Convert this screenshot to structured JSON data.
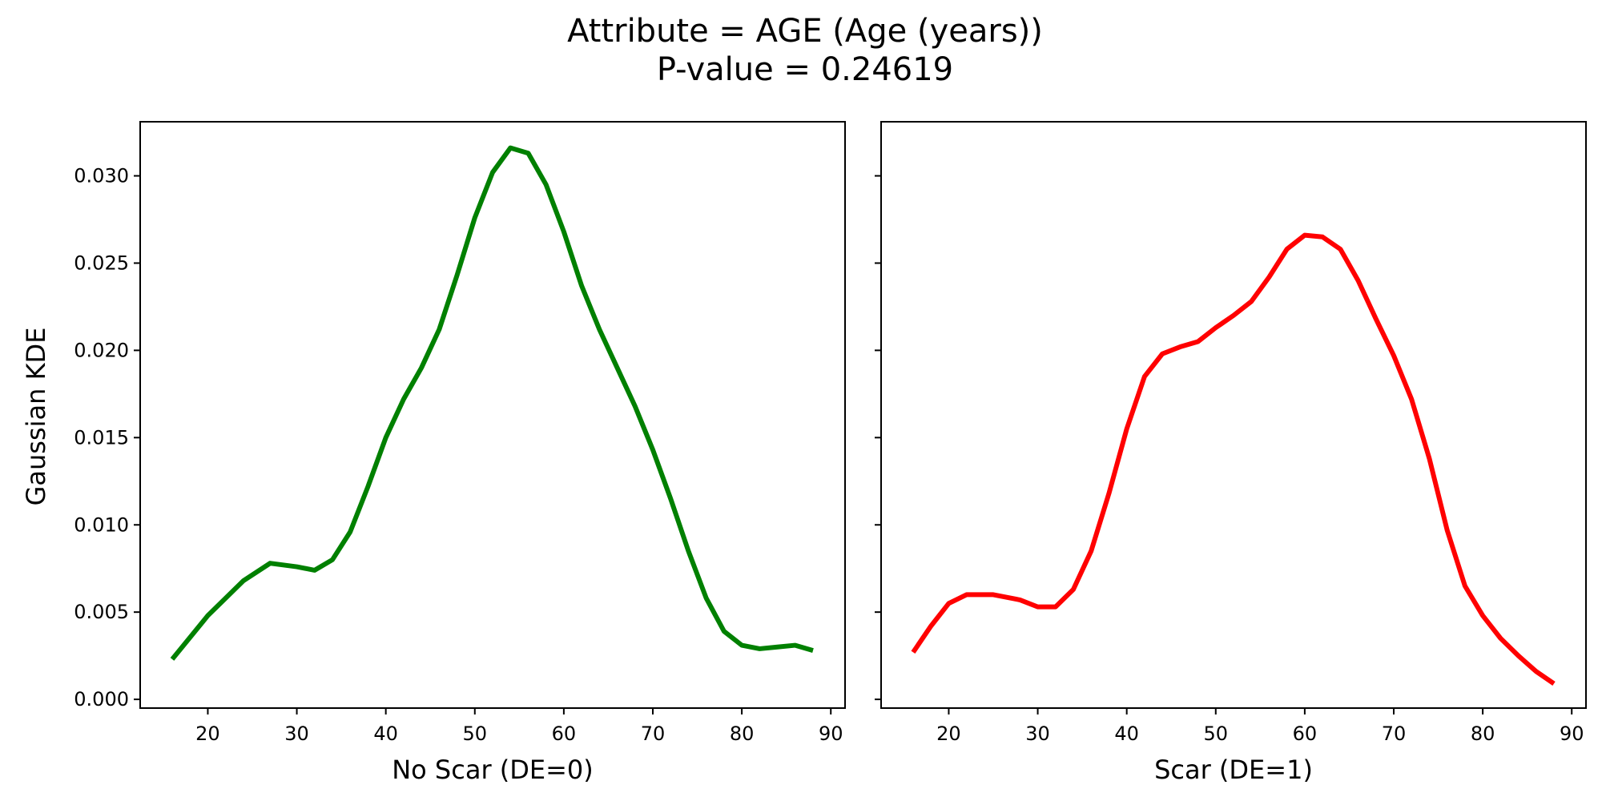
{
  "figure": {
    "title_line1": "Attribute = AGE (Age (years))",
    "title_line2": "P-value = 0.24619",
    "ylabel": "Gaussian KDE"
  },
  "chart_data": [
    {
      "type": "line",
      "title": "",
      "xlabel": "No Scar (DE=0)",
      "ylabel": "Gaussian KDE",
      "color": "#008000",
      "xlim": [
        12.4,
        91.6
      ],
      "ylim": [
        -0.0005,
        0.0331
      ],
      "xticks": [
        20,
        30,
        40,
        50,
        60,
        70,
        80,
        90
      ],
      "yticks": [
        0.0,
        0.005,
        0.01,
        0.015,
        0.02,
        0.025,
        0.03
      ],
      "yticklabels": [
        "0.000",
        "0.005",
        "0.010",
        "0.015",
        "0.020",
        "0.025",
        "0.030"
      ],
      "series": [
        {
          "name": "No Scar (DE=0)",
          "x": [
            16,
            20,
            24,
            27,
            30,
            32,
            34,
            36,
            38,
            40,
            42,
            44,
            46,
            48,
            50,
            52,
            54,
            56,
            58,
            60,
            62,
            64,
            66,
            68,
            70,
            72,
            74,
            76,
            78,
            80,
            82,
            84,
            86,
            88
          ],
          "y": [
            0.0023,
            0.0048,
            0.0068,
            0.0078,
            0.0076,
            0.0074,
            0.008,
            0.0096,
            0.0122,
            0.015,
            0.0172,
            0.019,
            0.0212,
            0.0243,
            0.0276,
            0.0302,
            0.0316,
            0.0313,
            0.0295,
            0.0268,
            0.0237,
            0.0212,
            0.019,
            0.0168,
            0.0143,
            0.0115,
            0.0085,
            0.0058,
            0.0039,
            0.0031,
            0.0029,
            0.003,
            0.0031,
            0.0028
          ]
        }
      ]
    },
    {
      "type": "line",
      "title": "",
      "xlabel": "Scar (DE=1)",
      "ylabel": "",
      "color": "#ff0000",
      "xlim": [
        12.4,
        91.6
      ],
      "ylim": [
        -0.0005,
        0.0331
      ],
      "xticks": [
        20,
        30,
        40,
        50,
        60,
        70,
        80,
        90
      ],
      "yticks": [
        0.0,
        0.005,
        0.01,
        0.015,
        0.02,
        0.025,
        0.03
      ],
      "yticklabels": [],
      "series": [
        {
          "name": "Scar (DE=1)",
          "x": [
            16,
            18,
            20,
            22,
            25,
            28,
            30,
            32,
            34,
            36,
            38,
            40,
            42,
            44,
            46,
            48,
            50,
            52,
            54,
            56,
            58,
            60,
            62,
            64,
            66,
            68,
            70,
            72,
            74,
            76,
            78,
            80,
            82,
            84,
            86,
            88
          ],
          "y": [
            0.0027,
            0.0042,
            0.0055,
            0.006,
            0.006,
            0.0057,
            0.0053,
            0.0053,
            0.0063,
            0.0085,
            0.0118,
            0.0155,
            0.0185,
            0.0198,
            0.0202,
            0.0205,
            0.0213,
            0.022,
            0.0228,
            0.0242,
            0.0258,
            0.0266,
            0.0265,
            0.0258,
            0.024,
            0.0218,
            0.0197,
            0.0172,
            0.0138,
            0.0097,
            0.0065,
            0.0048,
            0.0035,
            0.0025,
            0.0016,
            0.0009
          ]
        }
      ]
    }
  ]
}
